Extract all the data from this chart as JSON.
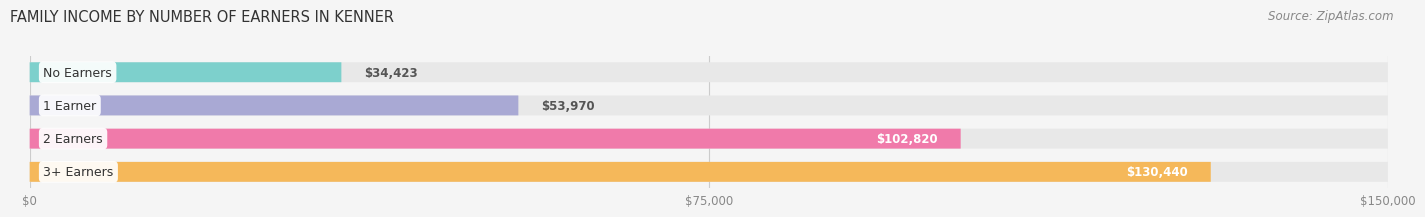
{
  "title": "FAMILY INCOME BY NUMBER OF EARNERS IN KENNER",
  "source": "Source: ZipAtlas.com",
  "categories": [
    "No Earners",
    "1 Earner",
    "2 Earners",
    "3+ Earners"
  ],
  "values": [
    34423,
    53970,
    102820,
    130440
  ],
  "labels": [
    "$34,423",
    "$53,970",
    "$102,820",
    "$130,440"
  ],
  "bar_colors": [
    "#7dd0cc",
    "#a9a9d4",
    "#f07aaa",
    "#f5b85a"
  ],
  "bar_bg_color": "#e8e8e8",
  "background_color": "#f5f5f5",
  "xlim": [
    0,
    150000
  ],
  "xtick_labels": [
    "$0",
    "$75,000",
    "$150,000"
  ],
  "xtick_values": [
    0,
    75000,
    150000
  ],
  "title_fontsize": 10.5,
  "source_fontsize": 8.5,
  "label_fontsize": 8.5,
  "bar_label_fontsize": 8.5,
  "category_fontsize": 9
}
